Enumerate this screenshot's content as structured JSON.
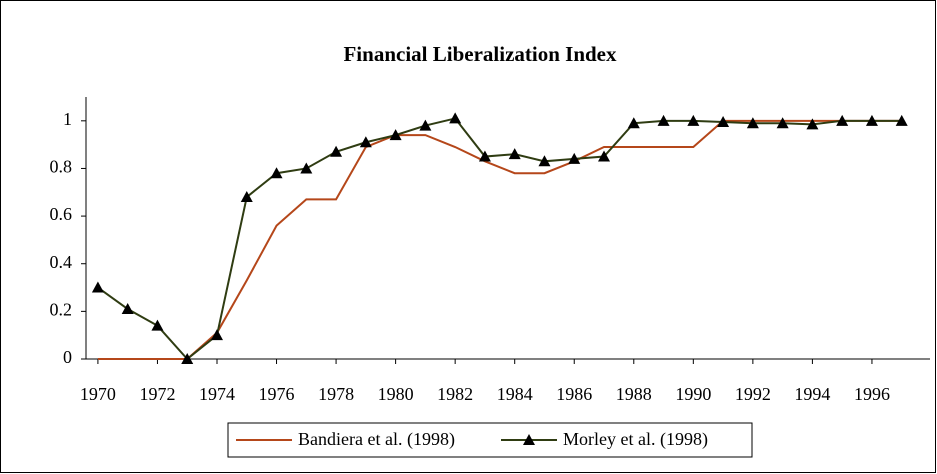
{
  "chart_data": {
    "type": "line",
    "title": "Financial Liberalization Index",
    "x": [
      1970,
      1971,
      1972,
      1973,
      1974,
      1975,
      1976,
      1977,
      1978,
      1979,
      1980,
      1981,
      1982,
      1983,
      1984,
      1985,
      1986,
      1987,
      1988,
      1989,
      1990,
      1991,
      1992,
      1993,
      1994,
      1995,
      1996,
      1997
    ],
    "series": [
      {
        "name": "Bandiera et al. (1998)",
        "color": "#b5471a",
        "marker": "none",
        "values": [
          0,
          0,
          0,
          0,
          0.11,
          0.33,
          0.56,
          0.67,
          0.67,
          0.89,
          0.94,
          0.94,
          0.89,
          0.83,
          0.78,
          0.78,
          0.83,
          0.89,
          0.89,
          0.89,
          0.89,
          1,
          1,
          1,
          1,
          1,
          1,
          1
        ]
      },
      {
        "name": "Morley et al. (1998)",
        "color": "#2f3c12",
        "marker": "triangle",
        "values": [
          0.3,
          0.21,
          0.14,
          0,
          0.1,
          0.68,
          0.78,
          0.8,
          0.87,
          0.91,
          0.94,
          0.98,
          1.01,
          0.85,
          0.86,
          0.83,
          0.84,
          0.85,
          0.99,
          1.0,
          1.0,
          0.995,
          0.99,
          0.99,
          0.985,
          1.0,
          1.0,
          1.0
        ]
      }
    ],
    "xlim": [
      1969.6,
      1997.95
    ],
    "xticks": [
      1970,
      1972,
      1974,
      1976,
      1978,
      1980,
      1982,
      1984,
      1986,
      1988,
      1990,
      1992,
      1994,
      1996
    ],
    "ylim": [
      0,
      1.1
    ],
    "yticks": [
      0,
      0.2,
      0.4,
      0.6,
      0.8,
      1
    ],
    "grid": false,
    "legend": "bottom"
  }
}
